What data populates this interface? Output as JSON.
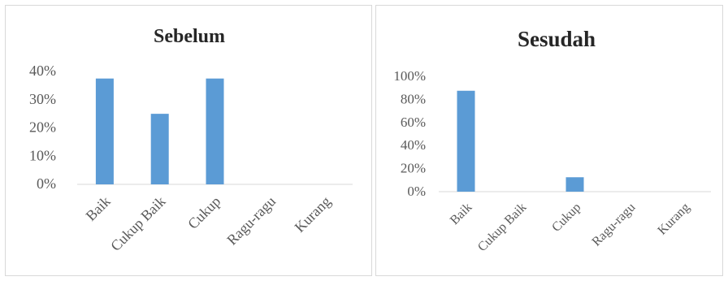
{
  "chart_data": [
    {
      "type": "bar",
      "title": "Sebelum",
      "categories": [
        "Baik",
        "Cukup Baik",
        "Cukup",
        "Ragu-ragu",
        "Kurang"
      ],
      "values": [
        0.375,
        0.25,
        0.375,
        0,
        0
      ],
      "yticks": [
        "0%",
        "10%",
        "20%",
        "30%",
        "40%"
      ],
      "ylim": [
        0,
        0.4
      ],
      "xlabel": "",
      "ylabel": "",
      "grid": false,
      "bar_color": "#5b9bd5"
    },
    {
      "type": "bar",
      "title": "Sesudah",
      "categories": [
        "Baik",
        "Cukup Baik",
        "Cukup",
        "Ragu-ragu",
        "Kurang"
      ],
      "values": [
        0.875,
        0,
        0.125,
        0,
        0
      ],
      "yticks": [
        "0%",
        "20%",
        "40%",
        "60%",
        "80%",
        "100%"
      ],
      "ylim": [
        0,
        1.0
      ],
      "xlabel": "",
      "ylabel": "",
      "grid": false,
      "bar_color": "#5b9bd5"
    }
  ]
}
